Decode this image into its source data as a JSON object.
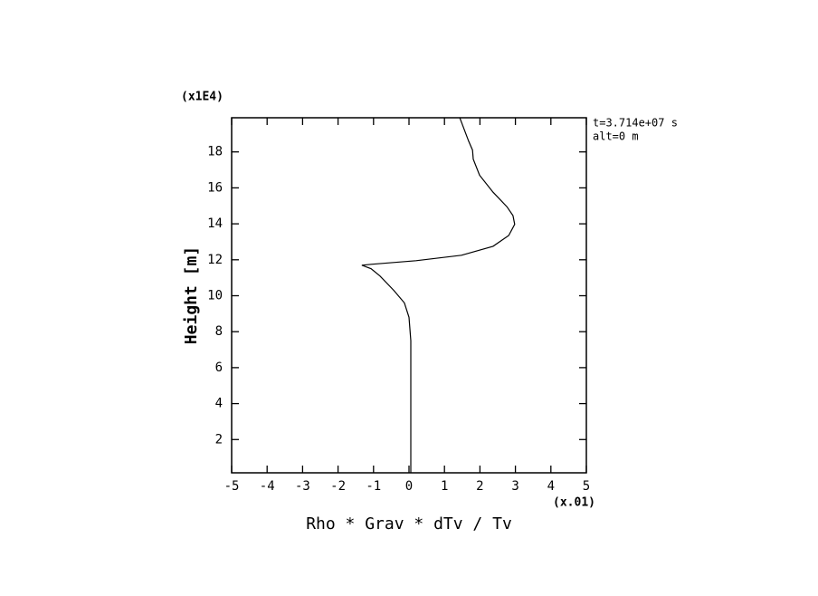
{
  "chart_data": {
    "type": "line",
    "xlabel": "Rho * Grav * dTv / Tv",
    "ylabel": "Height [m]",
    "x_multiplier": "(x.01)",
    "y_multiplier": "(x1E4)",
    "annotations": [
      "t=3.714e+07 s",
      "alt=0 m"
    ],
    "xlim": [
      -5,
      5
    ],
    "ylim": [
      0.15,
      19.9
    ],
    "xticks": [
      -5,
      -4,
      -3,
      -2,
      -1,
      0,
      1,
      2,
      3,
      4,
      5
    ],
    "yticks": [
      2,
      4,
      6,
      8,
      10,
      12,
      14,
      16,
      18
    ],
    "color": "#000000",
    "x": [
      0.05,
      0.05,
      0,
      -0.13,
      -0.43,
      -0.82,
      -1.07,
      -1.33,
      -1.07,
      0.2,
      1.48,
      2.37,
      2.81,
      2.98,
      2.93,
      2.76,
      2.37,
      1.99,
      1.81,
      1.79,
      1.68,
      1.43
    ],
    "y": [
      0.15,
      7.5,
      8.8,
      9.6,
      10.3,
      11.1,
      11.5,
      11.7,
      11.75,
      11.95,
      12.25,
      12.75,
      13.35,
      13.97,
      14.46,
      14.95,
      15.76,
      16.7,
      17.6,
      18.1,
      18.6,
      19.9
    ]
  }
}
